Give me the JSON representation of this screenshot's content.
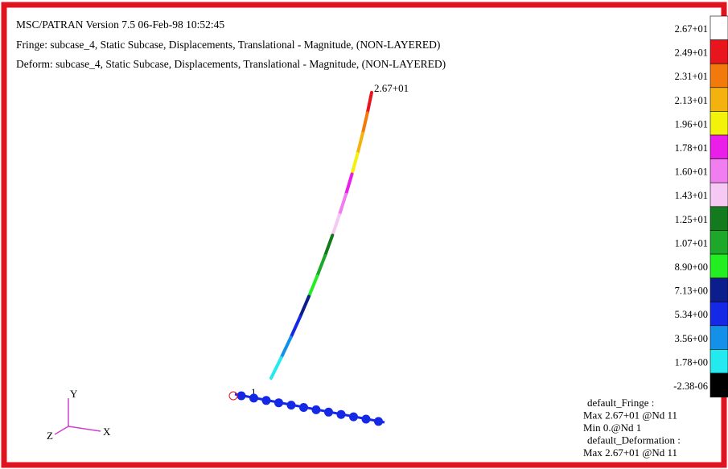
{
  "header": {
    "lines": [
      "MSC/PATRAN Version 7.5 06-Feb-98 10:52:45",
      "Fringe: subcase_4, Static Subcase, Displacements, Translational - Magnitude, (NON-LAYERED)",
      "Deform: subcase_4, Static Subcase, Displacements, Translational - Magnitude, (NON-LAYERED)"
    ]
  },
  "max_marker": "2.67+01",
  "node_label": "1",
  "legend": [
    {
      "label": "2.67+01",
      "color": "#ffffff"
    },
    {
      "label": "2.49+01",
      "color": "#e8141e"
    },
    {
      "label": "2.31+01",
      "color": "#f27a0c"
    },
    {
      "label": "2.13+01",
      "color": "#f4b20e"
    },
    {
      "label": "1.96+01",
      "color": "#f2f20a"
    },
    {
      "label": "1.78+01",
      "color": "#ea1ee8"
    },
    {
      "label": "1.60+01",
      "color": "#f07ef0"
    },
    {
      "label": "1.43+01",
      "color": "#f6c8f4"
    },
    {
      "label": "1.25+01",
      "color": "#147a1e"
    },
    {
      "label": "1.07+01",
      "color": "#1ea82a"
    },
    {
      "label": "8.90+00",
      "color": "#22ee22"
    },
    {
      "label": "7.13+00",
      "color": "#0c1e8c"
    },
    {
      "label": "5.34+00",
      "color": "#1428e6"
    },
    {
      "label": "3.56+00",
      "color": "#1490e8"
    },
    {
      "label": "1.78+00",
      "color": "#22eaee"
    },
    {
      "label": "-2.38-06",
      "color": "#000000"
    }
  ],
  "info": [
    "default_Fringe :",
    "Max 2.67+01 @Nd 11",
    "Min 0.@Nd 1",
    "default_Deformation :",
    "Max 2.67+01 @Nd 11"
  ],
  "triad": {
    "y": "Y",
    "z": "Z",
    "x": "X"
  }
}
